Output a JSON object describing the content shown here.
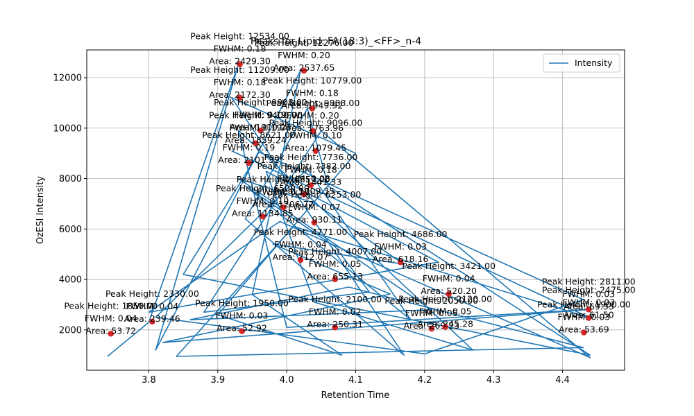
{
  "chart_data": {
    "type": "line",
    "title": "Peaks for Lipid: FA(18:3)_<FF>_n-4",
    "xlabel": "Retention Time",
    "ylabel": "OzESI Intensity",
    "xlim": [
      3.71,
      4.49
    ],
    "ylim": [
      400,
      13100
    ],
    "x_ticks": [
      "3.8",
      "3.9",
      "4.0",
      "4.1",
      "4.2",
      "4.3",
      "4.4"
    ],
    "y_ticks": [
      "2000",
      "4000",
      "6000",
      "8000",
      "10000",
      "12000"
    ],
    "grid": true,
    "legend": {
      "position": "top-right",
      "entries": [
        "Intensity"
      ]
    },
    "colors": {
      "line": "#1f77b4",
      "peak_marker": "#d62728"
    },
    "series": [
      {
        "name": "Intensity",
        "x": [
          3.74,
          3.8,
          3.93,
          3.81,
          4.02,
          3.95,
          4.08,
          3.9,
          4.1,
          3.92,
          4.17,
          3.94,
          4.03,
          4.06,
          4.44,
          3.85,
          3.96,
          4.43,
          4.2,
          3.81,
          4.03,
          4.18,
          3.94,
          4.07,
          4.12,
          3.88,
          4.05,
          4.44,
          3.99,
          3.8,
          4.22,
          3.97,
          4.04,
          4.27,
          3.93,
          4.0,
          4.44,
          3.82,
          4.15,
          3.98,
          4.17,
          4.04,
          3.93,
          4.21,
          3.86,
          4.09,
          4.43,
          3.84,
          4.01,
          4.44,
          3.92
        ],
        "y": [
          950,
          2300,
          12534,
          1200,
          12276,
          3400,
          1000,
          2600,
          9000,
          11209,
          1000,
          6400,
          10779,
          7700,
          1000,
          4200,
          9049,
          3200,
          1050,
          2500,
          8383,
          2400,
          7700,
          5300,
          3500,
          2700,
          9888,
          900,
          6300,
          2700,
          4686,
          8290,
          3100,
          1200,
          9908,
          2100,
          2811,
          1500,
          3421,
          5400,
          4600,
          7030,
          8000,
          2800,
          2400,
          3700,
          1300,
          950,
          6100,
          2475,
          9100
        ]
      }
    ],
    "peaks": [
      {
        "x": 3.932,
        "y": 12534,
        "height": "Peak Height: 12534.00",
        "fwhm": "FWHM: 0.18",
        "area": "Area: 2429.30"
      },
      {
        "x": 4.025,
        "y": 12276,
        "height": "Peak Height: 12276.00",
        "fwhm": "FWHM: 0.20",
        "area": "Area: 2537.65"
      },
      {
        "x": 3.932,
        "y": 11209,
        "height": "Peak Height: 11209.00",
        "fwhm": "FWHM: 0.18",
        "area": "Area: 2172.30"
      },
      {
        "x": 4.037,
        "y": 10779,
        "height": "Peak Height: 10779.00",
        "fwhm": "FWHM: 0.18",
        "area": "Area: 1949.92"
      },
      {
        "x": 3.962,
        "y": 9908,
        "height": "Peak Height: 9908.00",
        "fwhm": "FWHM: 0.19",
        "area": "Area: 1910.28"
      },
      {
        "x": 4.038,
        "y": 9888,
        "height": "Peak Height: 9888.00",
        "fwhm": "FWHM: 0.20",
        "area": "Area: 1763.96"
      },
      {
        "x": 3.955,
        "y": 9400,
        "height": "Peak Height: 9400.00",
        "fwhm": "FWHM: 0.19",
        "area": "Area: 1859.24"
      },
      {
        "x": 4.042,
        "y": 9096,
        "height": "Peak Height: 9096.00",
        "fwhm": "FWHM: 0.10",
        "area": "Area: 1079.45"
      },
      {
        "x": 3.945,
        "y": 8621,
        "height": "Peak Height: 8621.00",
        "fwhm": "FWHM: 0.19",
        "area": "Area: 2101.32"
      },
      {
        "x": 4.035,
        "y": 7736,
        "height": "Peak Height: 7736.00",
        "fwhm": "FWHM: 0.18",
        "area": "Area: 1441.33"
      },
      {
        "x": 3.995,
        "y": 6857,
        "height": "Peak Height: 6857.00",
        "fwhm": "FWHM: 0.12",
        "area": "Area: 1206.77"
      },
      {
        "x": 4.025,
        "y": 7382,
        "height": "Peak Height: 7382.00",
        "fwhm": "FWHM: 0.08",
        "area": "Area: 1009.35"
      },
      {
        "x": 3.965,
        "y": 6500,
        "height": "Peak Height: 6500.00",
        "fwhm": "FWHM: 0.10",
        "area": "Area: 1134.85"
      },
      {
        "x": 4.04,
        "y": 6253,
        "height": "Peak Height: 6253.00",
        "fwhm": "FWHM: 0.07",
        "area": "Area: 930.11"
      },
      {
        "x": 4.02,
        "y": 4771,
        "height": "Peak Height: 4771.00",
        "fwhm": "FWHM: 0.04",
        "area": "Area: 712.07"
      },
      {
        "x": 4.165,
        "y": 4686,
        "height": "Peak Height: 4686.00",
        "fwhm": "FWHM: 0.03",
        "area": "Area: 618.16"
      },
      {
        "x": 4.07,
        "y": 4007,
        "height": "Peak Height: 4007.00",
        "fwhm": "FWHM: 0.05",
        "area": "Area: 655.13"
      },
      {
        "x": 4.235,
        "y": 3421,
        "height": "Peak Height: 3421.00",
        "fwhm": "FWHM: 0.04",
        "area": "Area: 520.20"
      },
      {
        "x": 4.438,
        "y": 2811,
        "height": "Peak Height: 2811.00",
        "fwhm": "FWHM: 0.03",
        "area": "Area: 69.33"
      },
      {
        "x": 4.438,
        "y": 2475,
        "height": "Peak Height: 2475.00",
        "fwhm": "FWHM: 0.03",
        "area": "Area: 61.50"
      },
      {
        "x": 3.805,
        "y": 2330,
        "height": "Peak Height: 2330.00",
        "fwhm": "FWHM: 0.04",
        "area": "Area: 239.46"
      },
      {
        "x": 3.745,
        "y": 1850,
        "height": "Peak Height: 1850.00",
        "fwhm": "FWHM: 0.04",
        "area": "Area: 53.72"
      },
      {
        "x": 3.935,
        "y": 1950,
        "height": "Peak Height: 1950.00",
        "fwhm": "FWHM: 0.03",
        "area": "Area: 52.92"
      },
      {
        "x": 4.07,
        "y": 2100,
        "height": "Peak Height: 2100.00",
        "fwhm": "FWHM: 0.02",
        "area": "Area: 250.31"
      },
      {
        "x": 4.21,
        "y": 2050,
        "height": "Peak Height: 2050.00",
        "fwhm": "FWHM: 0.05",
        "area": "Area: 269.23"
      },
      {
        "x": 4.23,
        "y": 2120,
        "height": "Peak Height: 2120.00",
        "fwhm": "FWHM: 0.05",
        "area": "Area: 245.28"
      },
      {
        "x": 4.431,
        "y": 1900,
        "height": "Peak Height: 1900.00",
        "fwhm": "FWHM: 0.03",
        "area": "Area: 53.69"
      }
    ]
  }
}
